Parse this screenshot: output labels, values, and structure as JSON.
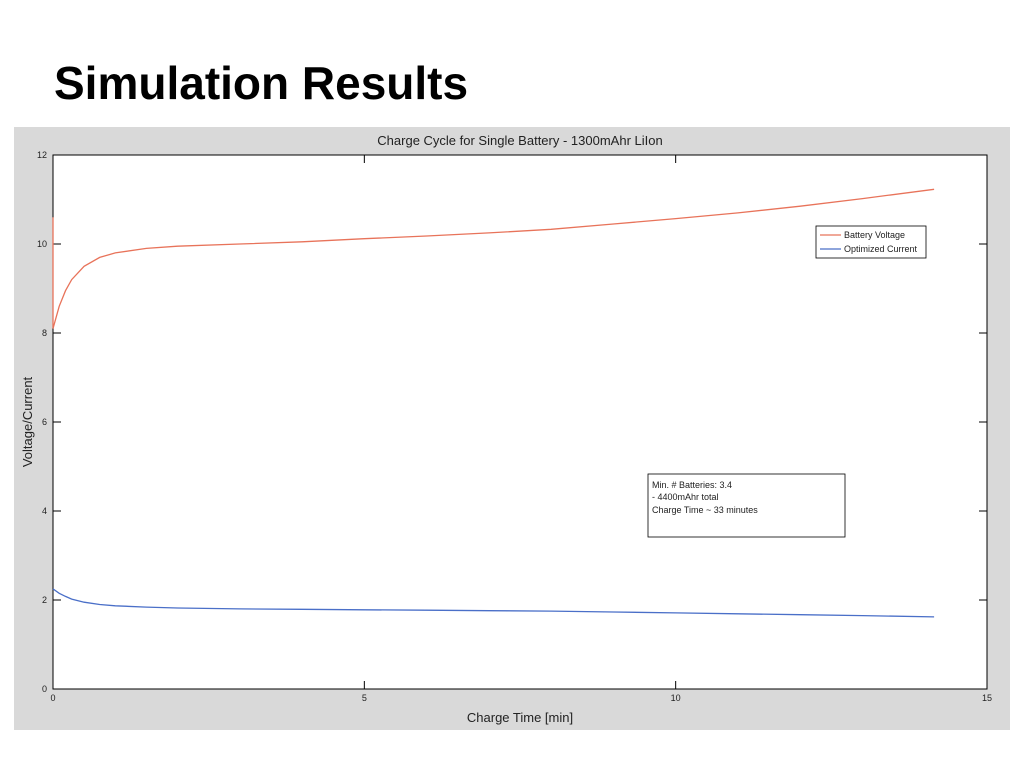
{
  "slide": {
    "title": "Simulation Results"
  },
  "chart_data": {
    "type": "line",
    "title": "Charge Cycle for Single Battery - 1300mAhr LiIon",
    "xlabel": "Charge Time [min]",
    "ylabel": "Voltage/Current",
    "xlim": [
      0,
      15
    ],
    "ylim": [
      0,
      12
    ],
    "xticks": [
      0,
      5,
      10,
      15
    ],
    "yticks": [
      0,
      2,
      4,
      6,
      8,
      10,
      12
    ],
    "grid": false,
    "legend_position": "top-right",
    "series": [
      {
        "name": "Battery Voltage",
        "color": "#e8735a",
        "x": [
          0,
          0.1,
          0.2,
          0.3,
          0.5,
          0.75,
          1,
          1.5,
          2,
          3,
          4,
          5,
          6,
          7,
          8,
          9,
          10,
          11,
          12,
          13,
          14.15
        ],
        "y": [
          8.1,
          8.6,
          8.95,
          9.2,
          9.5,
          9.7,
          9.8,
          9.9,
          9.95,
          10.0,
          10.05,
          10.12,
          10.18,
          10.25,
          10.33,
          10.45,
          10.57,
          10.7,
          10.85,
          11.02,
          11.23
        ]
      },
      {
        "name": "Optimized Current",
        "color": "#4a6fc8",
        "x": [
          0,
          0.1,
          0.2,
          0.3,
          0.5,
          0.75,
          1,
          1.5,
          2,
          3,
          4,
          5,
          6,
          7,
          8,
          9,
          10,
          11,
          12,
          13,
          14.15
        ],
        "y": [
          2.25,
          2.15,
          2.08,
          2.02,
          1.95,
          1.9,
          1.87,
          1.84,
          1.82,
          1.8,
          1.79,
          1.78,
          1.77,
          1.76,
          1.75,
          1.73,
          1.71,
          1.69,
          1.67,
          1.65,
          1.62
        ]
      }
    ],
    "annotation": {
      "lines": [
        "Min. # Batteries: 3.4",
        "- 4400mAhr total",
        "Charge Time ~ 33 minutes"
      ]
    }
  }
}
